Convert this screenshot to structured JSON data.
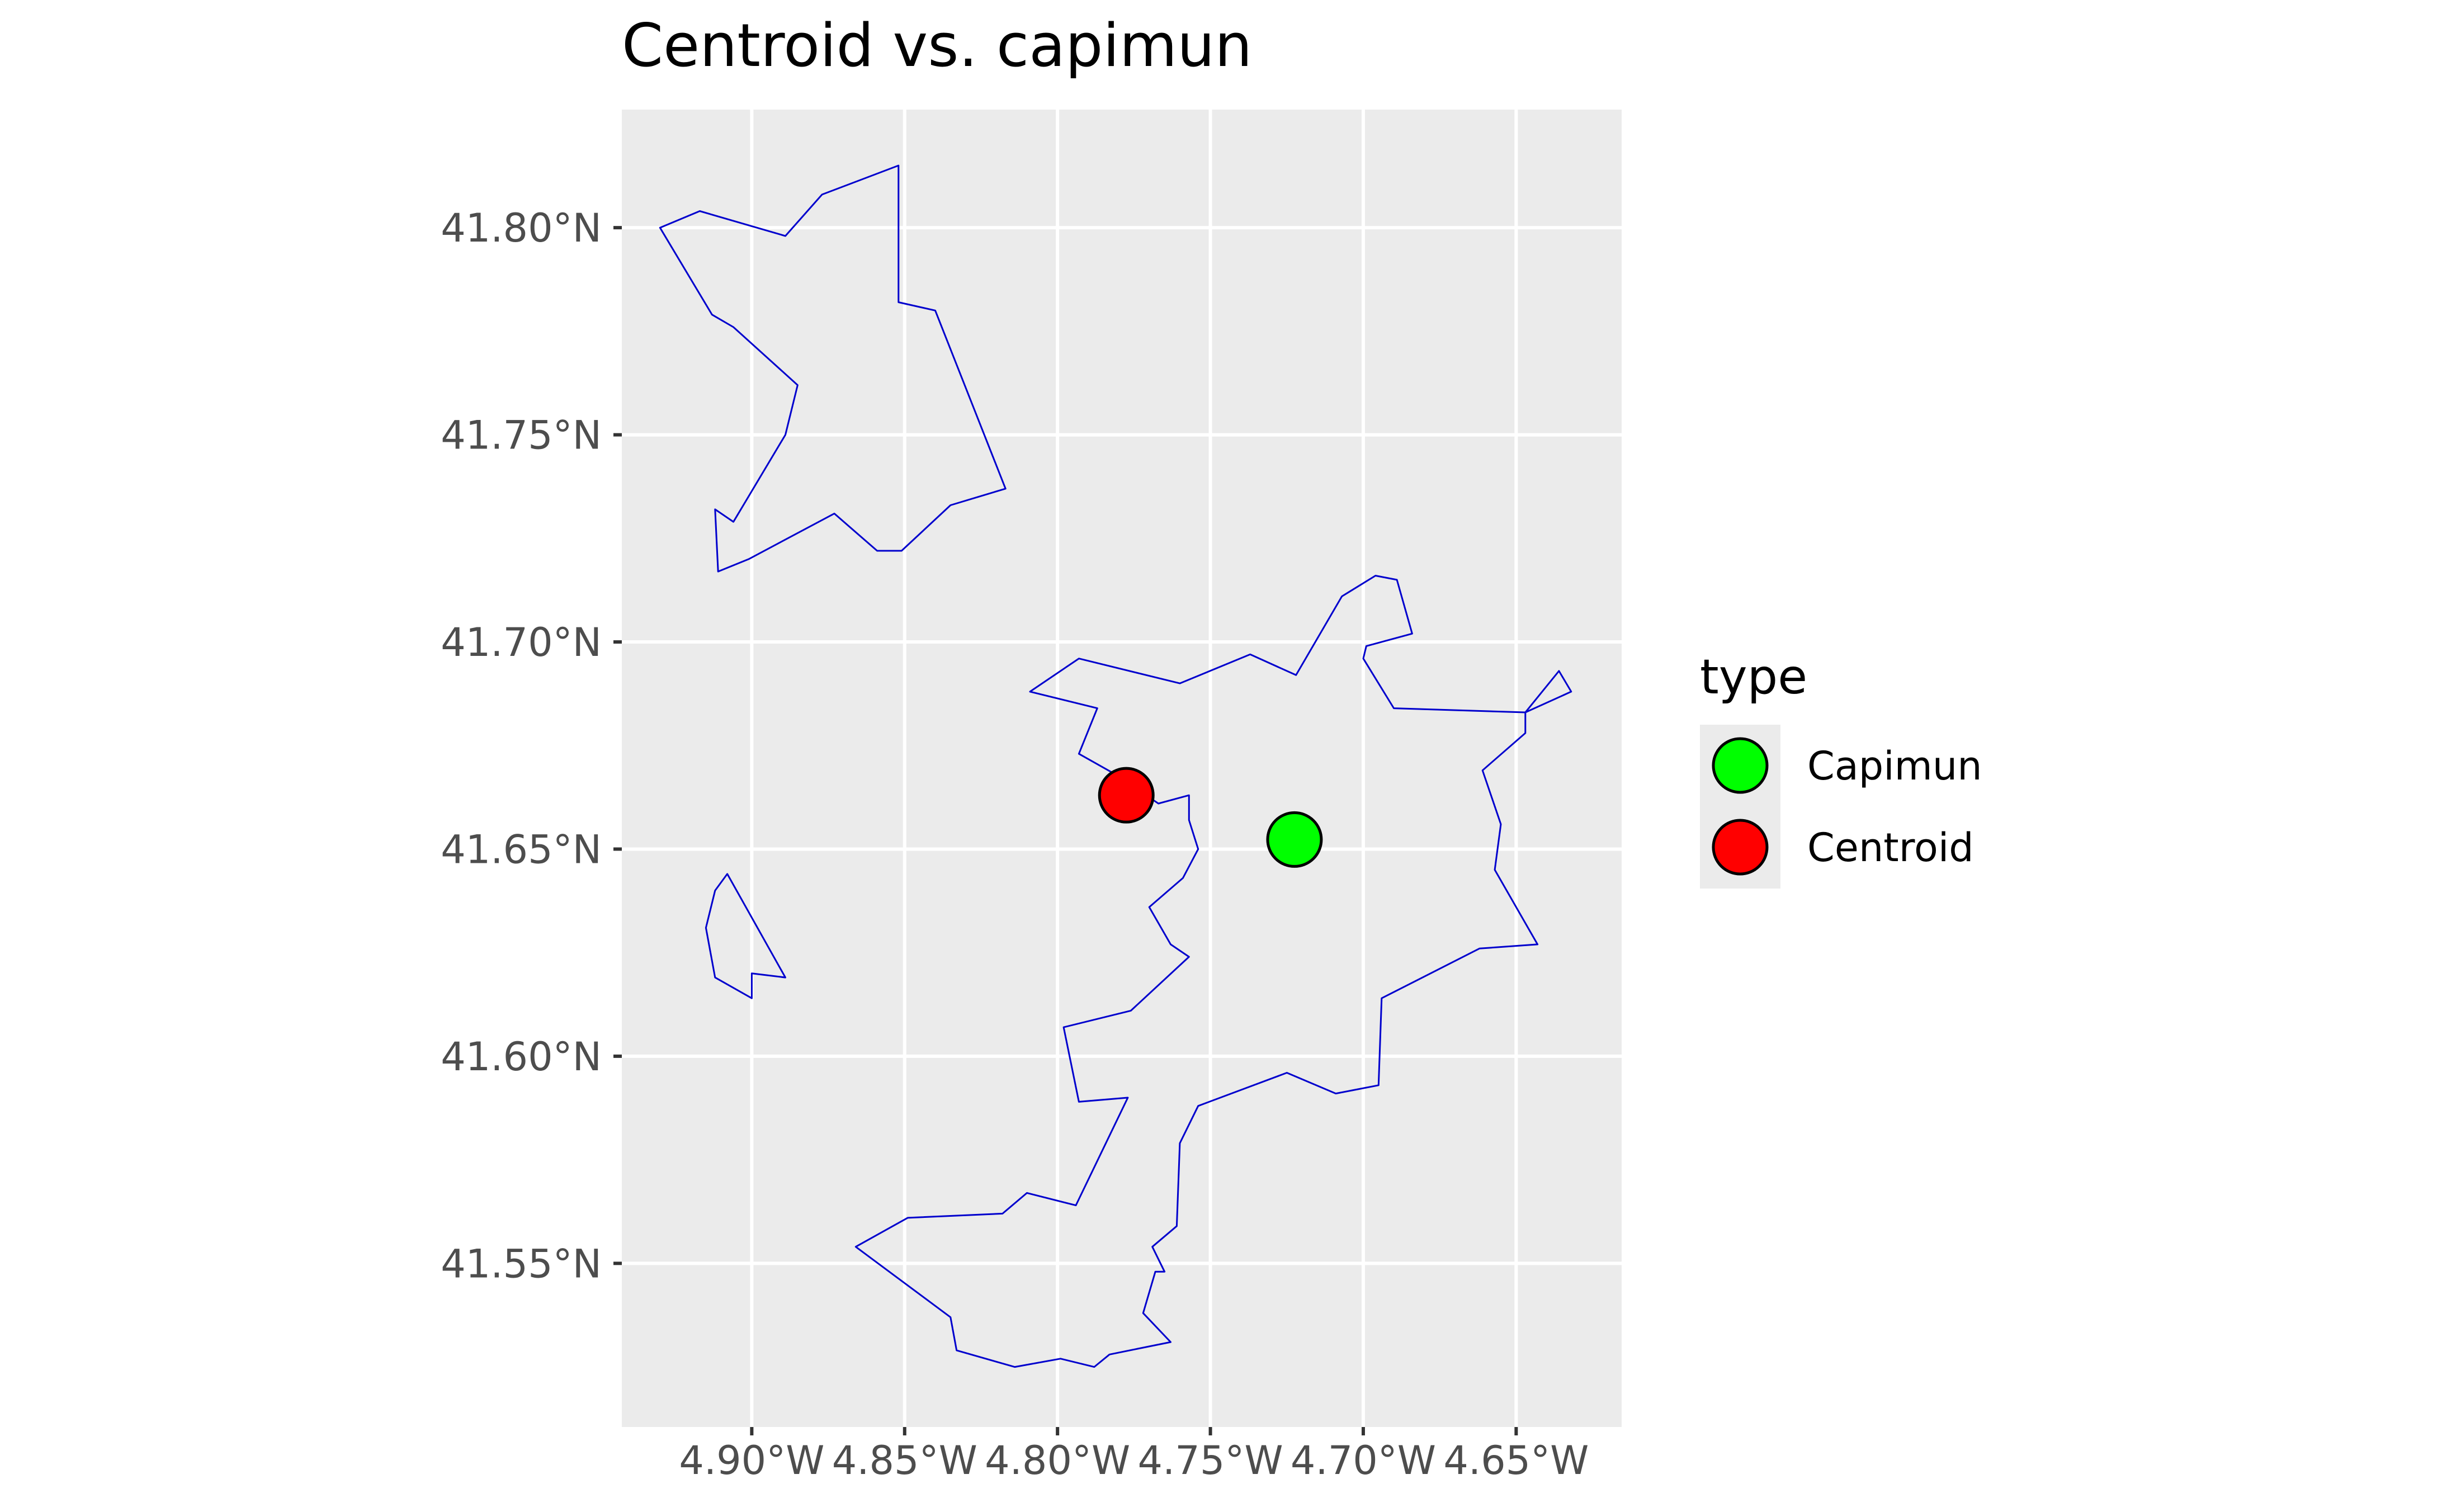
{
  "title": "Centroid vs. capimun",
  "colors": {
    "panel_background": "#ebebeb",
    "gridline": "#ffffff",
    "boundary": "#0000cd",
    "point_outline": "#000000"
  },
  "axes": {
    "x": {
      "lon_range": [
        -4.9425,
        -4.6155
      ],
      "ticks": [
        {
          "value": -4.9,
          "label": "4.90°W"
        },
        {
          "value": -4.85,
          "label": "4.85°W"
        },
        {
          "value": -4.8,
          "label": "4.80°W"
        },
        {
          "value": -4.75,
          "label": "4.75°W"
        },
        {
          "value": -4.7,
          "label": "4.70°W"
        },
        {
          "value": -4.65,
          "label": "4.65°W"
        }
      ]
    },
    "y": {
      "lat_range": [
        41.5105,
        41.8285
      ],
      "ticks": [
        {
          "value": 41.8,
          "label": "41.80°N"
        },
        {
          "value": 41.75,
          "label": "41.75°N"
        },
        {
          "value": 41.7,
          "label": "41.70°N"
        },
        {
          "value": 41.65,
          "label": "41.65°N"
        },
        {
          "value": 41.6,
          "label": "41.60°N"
        },
        {
          "value": 41.55,
          "label": "41.55°N"
        }
      ]
    }
  },
  "map_data": {
    "polygons": [
      {
        "coords": [
          [
            -4.93,
            41.8
          ],
          [
            -4.917,
            41.804
          ],
          [
            -4.889,
            41.798
          ],
          [
            -4.877,
            41.808
          ],
          [
            -4.852,
            41.815
          ],
          [
            -4.852,
            41.782
          ],
          [
            -4.84,
            41.78
          ],
          [
            -4.817,
            41.737
          ],
          [
            -4.835,
            41.733
          ],
          [
            -4.851,
            41.722
          ],
          [
            -4.859,
            41.722
          ],
          [
            -4.873,
            41.731
          ],
          [
            -4.901,
            41.72
          ],
          [
            -4.911,
            41.717
          ],
          [
            -4.912,
            41.732
          ],
          [
            -4.906,
            41.729
          ],
          [
            -4.889,
            41.75
          ],
          [
            -4.885,
            41.762
          ],
          [
            -4.906,
            41.776
          ],
          [
            -4.913,
            41.779
          ]
        ]
      },
      {
        "coords": [
          [
            -4.908,
            41.644
          ],
          [
            -4.912,
            41.64
          ],
          [
            -4.915,
            41.631
          ],
          [
            -4.912,
            41.619
          ],
          [
            -4.9,
            41.614
          ],
          [
            -4.9,
            41.62
          ],
          [
            -4.889,
            41.619
          ]
        ]
      },
      {
        "coords": [
          [
            -4.809,
            41.688
          ],
          [
            -4.793,
            41.696
          ],
          [
            -4.76,
            41.69
          ],
          [
            -4.737,
            41.697
          ],
          [
            -4.722,
            41.692
          ],
          [
            -4.707,
            41.711
          ],
          [
            -4.696,
            41.716
          ],
          [
            -4.689,
            41.715
          ],
          [
            -4.684,
            41.702
          ],
          [
            -4.699,
            41.699
          ],
          [
            -4.7,
            41.696
          ],
          [
            -4.69,
            41.684
          ],
          [
            -4.647,
            41.683
          ],
          [
            -4.636,
            41.693
          ],
          [
            -4.632,
            41.688
          ],
          [
            -4.647,
            41.683
          ],
          [
            -4.647,
            41.678
          ],
          [
            -4.661,
            41.669
          ],
          [
            -4.655,
            41.656
          ],
          [
            -4.657,
            41.645
          ],
          [
            -4.643,
            41.627
          ],
          [
            -4.662,
            41.626
          ],
          [
            -4.694,
            41.614
          ],
          [
            -4.695,
            41.593
          ],
          [
            -4.709,
            41.591
          ],
          [
            -4.725,
            41.596
          ],
          [
            -4.754,
            41.588
          ],
          [
            -4.76,
            41.579
          ],
          [
            -4.761,
            41.559
          ],
          [
            -4.769,
            41.554
          ],
          [
            -4.765,
            41.548
          ],
          [
            -4.768,
            41.548
          ],
          [
            -4.772,
            41.538
          ],
          [
            -4.763,
            41.531
          ],
          [
            -4.783,
            41.528
          ],
          [
            -4.788,
            41.525
          ],
          [
            -4.799,
            41.527
          ],
          [
            -4.814,
            41.525
          ],
          [
            -4.833,
            41.529
          ],
          [
            -4.835,
            41.537
          ],
          [
            -4.866,
            41.554
          ],
          [
            -4.849,
            41.561
          ],
          [
            -4.818,
            41.562
          ],
          [
            -4.81,
            41.567
          ],
          [
            -4.794,
            41.564
          ],
          [
            -4.777,
            41.59
          ],
          [
            -4.793,
            41.589
          ],
          [
            -4.798,
            41.607
          ],
          [
            -4.776,
            41.611
          ],
          [
            -4.757,
            41.624
          ],
          [
            -4.763,
            41.627
          ],
          [
            -4.77,
            41.636
          ],
          [
            -4.759,
            41.643
          ],
          [
            -4.754,
            41.65
          ],
          [
            -4.757,
            41.657
          ],
          [
            -4.757,
            41.663
          ],
          [
            -4.767,
            41.661
          ],
          [
            -4.781,
            41.668
          ],
          [
            -4.793,
            41.673
          ],
          [
            -4.787,
            41.684
          ]
        ]
      }
    ],
    "points": [
      {
        "type": "Capimun",
        "lon": -4.7225,
        "lat": 41.6523,
        "color": "#00ff00"
      },
      {
        "type": "Centroid",
        "lon": -4.7775,
        "lat": 41.663,
        "color": "#ff0000"
      }
    ]
  },
  "legend": {
    "title": "type",
    "items": [
      {
        "label": "Capimun",
        "color": "#00ff00"
      },
      {
        "label": "Centroid",
        "color": "#ff0000"
      }
    ]
  }
}
